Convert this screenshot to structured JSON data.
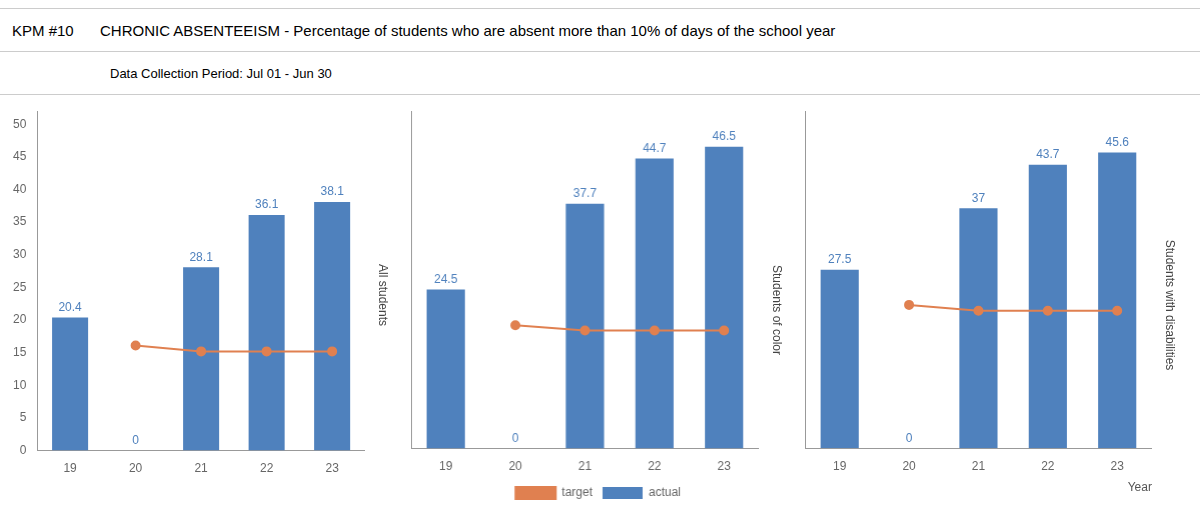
{
  "title": "CHRONIC ABSENTEEISM - Percentage of students who are absent more than 10% of days of the school year",
  "subtitle": "Data Collection Period: Jul 01 - Jun 30",
  "annotations": [
    "KPM #10"
  ],
  "chart_data": [
    {
      "type": "bar",
      "title": "All students",
      "categories": [
        "19",
        "20",
        "21",
        "22",
        "23"
      ],
      "series": [
        {
          "name": "actual",
          "type": "bar",
          "color": "#4f81bd",
          "data_labels": true,
          "values": [
            20.4,
            0,
            28.1,
            36.1,
            38.1
          ]
        },
        {
          "name": "target",
          "type": "line",
          "color": "#e08050",
          "marker": "circle",
          "values": [
            null,
            16.1,
            15.2,
            15.2,
            15.2
          ]
        }
      ],
      "ylim": [
        0,
        52
      ],
      "yticks": [
        0,
        5,
        10,
        15,
        20,
        25,
        30,
        35,
        40,
        45,
        50
      ],
      "grid": false
    },
    {
      "type": "bar",
      "title": "Students of color",
      "categories": [
        "19",
        "20",
        "21",
        "22",
        "23"
      ],
      "series": [
        {
          "name": "actual",
          "type": "bar",
          "color": "#4f81bd",
          "data_labels": true,
          "values": [
            24.5,
            0,
            37.7,
            44.7,
            46.5
          ]
        },
        {
          "name": "target",
          "type": "line",
          "color": "#e08050",
          "marker": "circle",
          "values": [
            null,
            19.0,
            18.2,
            18.2,
            18.2
          ]
        }
      ],
      "ylim": [
        0,
        52
      ],
      "yticks": [
        0,
        5,
        10,
        15,
        20,
        25,
        30,
        35,
        40,
        45,
        50
      ],
      "grid": false,
      "tick_labels": "x",
      "legend": "bottom"
    },
    {
      "type": "bar",
      "title": "Students with disabilities",
      "categories": [
        "19",
        "20",
        "21",
        "22",
        "23"
      ],
      "series": [
        {
          "name": "actual",
          "type": "bar",
          "color": "#4f81bd",
          "data_labels": true,
          "values": [
            27.5,
            0,
            37.0,
            43.7,
            45.6
          ]
        },
        {
          "name": "target",
          "type": "line",
          "color": "#e08050",
          "marker": "circle",
          "values": [
            null,
            22.1,
            21.2,
            21.2,
            21.2
          ]
        }
      ],
      "ylim": [
        0,
        52
      ],
      "yticks": [
        0,
        5,
        10,
        15,
        20,
        25,
        30,
        35,
        40,
        45,
        50
      ],
      "grid": false,
      "tick_labels": "x",
      "x_label": "Year"
    }
  ]
}
